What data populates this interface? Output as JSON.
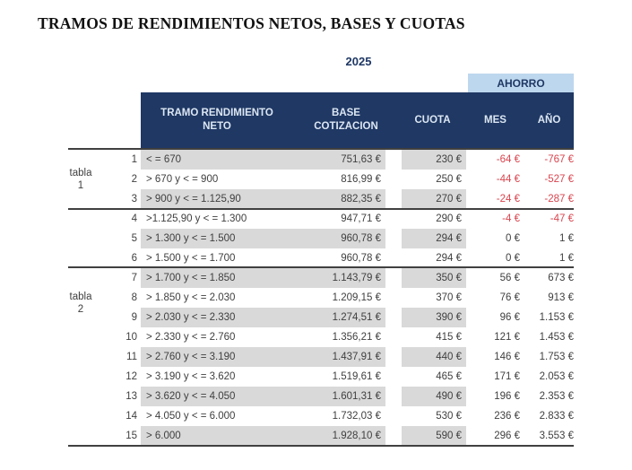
{
  "page": {
    "title": "TRAMOS DE RENDIMIENTOS NETOS, BASES Y CUOTAS",
    "year": "2025"
  },
  "colors": {
    "header_navy": "#1f3864",
    "header_text": "#dce6f2",
    "ahorro_bg": "#bdd7ee",
    "stripe_gray": "#d9d9d9",
    "negative_red": "#d9454f",
    "body_text": "#3f3f3f"
  },
  "table": {
    "ahorro_banner": "AHORRO",
    "columns": {
      "tramo_line1": "TRAMO RENDIMIENTO",
      "tramo_line2": "NETO",
      "base_line1": "BASE",
      "base_line2": "COTIZACION",
      "cuota": "CUOTA",
      "mes": "MES",
      "ano": "AÑO"
    },
    "groups": [
      {
        "line1": "tabla",
        "line2": "1"
      },
      {
        "line1": "tabla",
        "line2": "2"
      }
    ],
    "rows": [
      {
        "num": "1",
        "tramo": "< = 670",
        "base": "751,63 €",
        "cuota": "230 €",
        "mes": "-64 €",
        "ano": "-767 €",
        "negative": true
      },
      {
        "num": "2",
        "tramo": "> 670 y < = 900",
        "base": "816,99 €",
        "cuota": "250 €",
        "mes": "-44 €",
        "ano": "-527 €",
        "negative": true
      },
      {
        "num": "3",
        "tramo": "> 900 y < = 1.125,90",
        "base": "882,35 €",
        "cuota": "270 €",
        "mes": "-24 €",
        "ano": "-287 €",
        "negative": true
      },
      {
        "num": "4",
        "tramo": ">1.125,90 y < = 1.300",
        "base": "947,71 €",
        "cuota": "290 €",
        "mes": "-4 €",
        "ano": "-47 €",
        "negative": true
      },
      {
        "num": "5",
        "tramo": "> 1.300 y < = 1.500",
        "base": "960,78 €",
        "cuota": "294 €",
        "mes": "0 €",
        "ano": "1 €",
        "negative": false
      },
      {
        "num": "6",
        "tramo": "> 1.500 y < = 1.700",
        "base": "960,78 €",
        "cuota": "294 €",
        "mes": "0 €",
        "ano": "1 €",
        "negative": false
      },
      {
        "num": "7",
        "tramo": "> 1.700 y < = 1.850",
        "base": "1.143,79 €",
        "cuota": "350 €",
        "mes": "56 €",
        "ano": "673 €",
        "negative": false
      },
      {
        "num": "8",
        "tramo": "> 1.850 y < = 2.030",
        "base": "1.209,15 €",
        "cuota": "370 €",
        "mes": "76 €",
        "ano": "913 €",
        "negative": false
      },
      {
        "num": "9",
        "tramo": "> 2.030 y < = 2.330",
        "base": "1.274,51 €",
        "cuota": "390 €",
        "mes": "96 €",
        "ano": "1.153 €",
        "negative": false
      },
      {
        "num": "10",
        "tramo": "> 2.330 y < = 2.760",
        "base": "1.356,21 €",
        "cuota": "415 €",
        "mes": "121 €",
        "ano": "1.453 €",
        "negative": false
      },
      {
        "num": "11",
        "tramo": "> 2.760 y < = 3.190",
        "base": "1.437,91 €",
        "cuota": "440 €",
        "mes": "146 €",
        "ano": "1.753 €",
        "negative": false
      },
      {
        "num": "12",
        "tramo": "> 3.190 y < = 3.620",
        "base": "1.519,61 €",
        "cuota": "465 €",
        "mes": "171 €",
        "ano": "2.053 €",
        "negative": false
      },
      {
        "num": "13",
        "tramo": "> 3.620 y < = 4.050",
        "base": "1.601,31 €",
        "cuota": "490 €",
        "mes": "196 €",
        "ano": "2.353 €",
        "negative": false
      },
      {
        "num": "14",
        "tramo": "> 4.050 y < = 6.000",
        "base": "1.732,03 €",
        "cuota": "530 €",
        "mes": "236 €",
        "ano": "2.833 €",
        "negative": false
      },
      {
        "num": "15",
        "tramo": "> 6.000",
        "base": "1.928,10 €",
        "cuota": "590 €",
        "mes": "296 €",
        "ano": "3.553 €",
        "negative": false
      }
    ]
  }
}
